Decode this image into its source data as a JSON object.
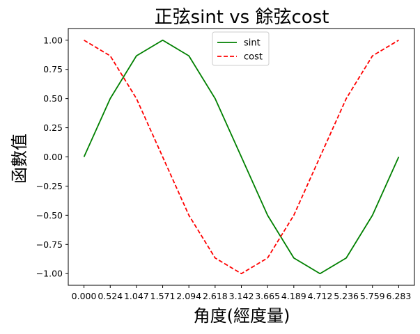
{
  "chart_data": {
    "type": "line",
    "title": "正弦sint vs 餘弦cost",
    "xlabel": "角度(經度量)",
    "ylabel": "函數值",
    "x": [
      0.0,
      0.524,
      1.047,
      1.571,
      2.094,
      2.618,
      3.142,
      3.665,
      4.189,
      4.712,
      5.236,
      5.759,
      6.283
    ],
    "xtick_labels": [
      "0.000",
      "0.524",
      "1.047",
      "1.571",
      "2.094",
      "2.618",
      "3.142",
      "3.665",
      "4.189",
      "4.712",
      "5.236",
      "5.759",
      "6.283"
    ],
    "yticks": [
      1.0,
      0.75,
      0.5,
      0.25,
      0.0,
      -0.25,
      -0.5,
      -0.75,
      -1.0
    ],
    "ytick_labels": [
      "1.00",
      "0.75",
      "0.50",
      "0.25",
      "0.00",
      "−0.25",
      "−0.50",
      "−0.75",
      "−1.00"
    ],
    "xlim": [
      -0.314,
      6.597
    ],
    "ylim": [
      -1.1,
      1.1
    ],
    "grid": false,
    "legend": "top-center",
    "series": [
      {
        "name": "sint",
        "color": "#008000",
        "style": "solid",
        "values": [
          0.0,
          0.5,
          0.866,
          1.0,
          0.866,
          0.5,
          0.0,
          -0.5,
          -0.866,
          -1.0,
          -0.866,
          -0.5,
          0.0
        ]
      },
      {
        "name": "cost",
        "color": "#ff0000",
        "style": "dashed",
        "values": [
          1.0,
          0.866,
          0.5,
          0.0,
          -0.5,
          -0.866,
          -1.0,
          -0.866,
          -0.5,
          0.0,
          0.5,
          0.866,
          1.0
        ]
      }
    ]
  }
}
